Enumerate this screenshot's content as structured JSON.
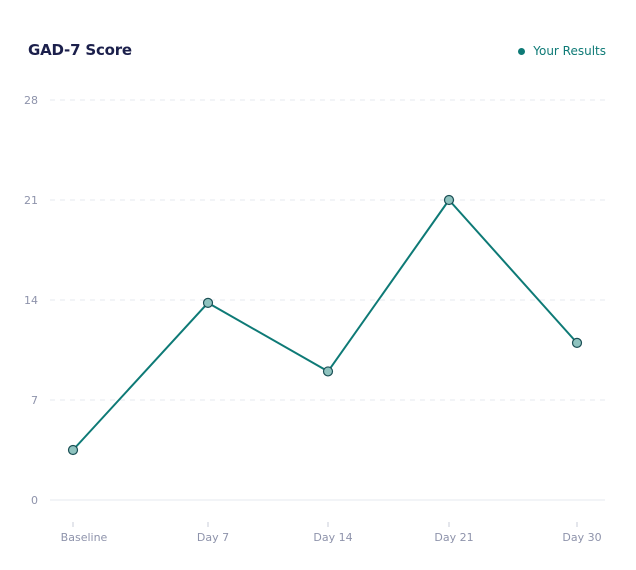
{
  "chart_data": {
    "type": "line",
    "title": "GAD-7 Score",
    "categories": [
      "Baseline",
      "Day 7",
      "Day 14",
      "Day 21",
      "Day 30"
    ],
    "series": [
      {
        "name": "Your Results",
        "values": [
          3.5,
          13.8,
          9,
          21,
          11
        ],
        "color": "#0e7a76"
      }
    ],
    "ylim": [
      0,
      28
    ],
    "yticks": [
      0,
      7,
      14,
      21,
      28
    ],
    "grid": true,
    "legend_position": "top-right"
  }
}
